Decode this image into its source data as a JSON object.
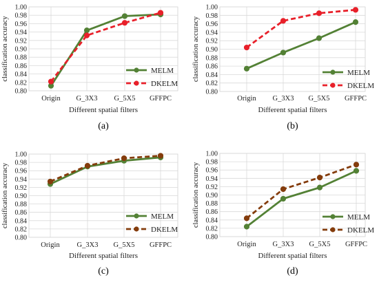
{
  "chart_data": [
    {
      "type": "line",
      "panel_label": "(a)",
      "categories": [
        "Origin",
        "G_3X3",
        "G_5X5",
        "GFFPC"
      ],
      "xlabel": "Different spatial filters",
      "ylabel": "classification accuracy",
      "ylim": [
        0.8,
        1.0
      ],
      "yticks": [
        "0.80",
        "0.82",
        "0.84",
        "0.86",
        "0.88",
        "0.90",
        "0.92",
        "0.94",
        "0.96",
        "0.98",
        "1.00"
      ],
      "grid": true,
      "legend_position": "right-middle",
      "series": [
        {
          "name": "MELM",
          "values": [
            0.812,
            0.944,
            0.978,
            0.982
          ],
          "color": "#538135",
          "style": "solid"
        },
        {
          "name": "DKELM",
          "values": [
            0.822,
            0.932,
            0.962,
            0.986
          ],
          "color": "#e8202a",
          "style": "dashed"
        }
      ]
    },
    {
      "type": "line",
      "panel_label": "(b)",
      "categories": [
        "Origin",
        "G_3X3",
        "G_5X5",
        "GFFPC"
      ],
      "xlabel": "Different spatial filters",
      "ylabel": "classification accuracy",
      "ylim": [
        0.8,
        1.0
      ],
      "yticks": [
        "0.80",
        "0.82",
        "0.84",
        "0.86",
        "0.88",
        "0.90",
        "0.92",
        "0.94",
        "0.96",
        "0.98",
        "1.00"
      ],
      "grid": true,
      "legend_position": "bottom-right",
      "series": [
        {
          "name": "MELM",
          "values": [
            0.854,
            0.892,
            0.926,
            0.964
          ],
          "color": "#538135",
          "style": "solid"
        },
        {
          "name": "DKELM",
          "values": [
            0.904,
            0.967,
            0.985,
            0.993
          ],
          "color": "#e8202a",
          "style": "dashed"
        }
      ]
    },
    {
      "type": "line",
      "panel_label": "(c)",
      "categories": [
        "Origin",
        "G_3X3",
        "G_5X5",
        "GFFPC"
      ],
      "xlabel": "Different spatial filters",
      "ylabel": "classification accuracy",
      "ylim": [
        0.8,
        1.0
      ],
      "yticks": [
        "0.80",
        "0.82",
        "0.84",
        "0.86",
        "0.88",
        "0.90",
        "0.92",
        "0.94",
        "0.96",
        "0.98",
        "1.00"
      ],
      "grid": true,
      "legend_position": "bottom-right",
      "series": [
        {
          "name": "MELM",
          "values": [
            0.928,
            0.97,
            0.984,
            0.992
          ],
          "color": "#538135",
          "style": "solid"
        },
        {
          "name": "DKELM",
          "values": [
            0.934,
            0.972,
            0.99,
            0.996
          ],
          "color": "#843c0c",
          "style": "dashed"
        }
      ]
    },
    {
      "type": "line",
      "panel_label": "(d)",
      "categories": [
        "Origin",
        "G_3X3",
        "G_5X5",
        "GFFPC"
      ],
      "xlabel": "Different spatial filters",
      "ylabel": "classification accuracy",
      "ylim": [
        0.8,
        1.0
      ],
      "yticks": [
        "0.80",
        "0.82",
        "0.84",
        "0.86",
        "0.88",
        "0.90",
        "0.92",
        "0.94",
        "0.96",
        "0.98",
        "1.00"
      ],
      "grid": true,
      "legend_position": "bottom-right",
      "series": [
        {
          "name": "MELM",
          "values": [
            0.824,
            0.891,
            0.918,
            0.958
          ],
          "color": "#538135",
          "style": "solid"
        },
        {
          "name": "DKELM",
          "values": [
            0.844,
            0.914,
            0.942,
            0.973
          ],
          "color": "#843c0c",
          "style": "dashed"
        }
      ]
    }
  ]
}
